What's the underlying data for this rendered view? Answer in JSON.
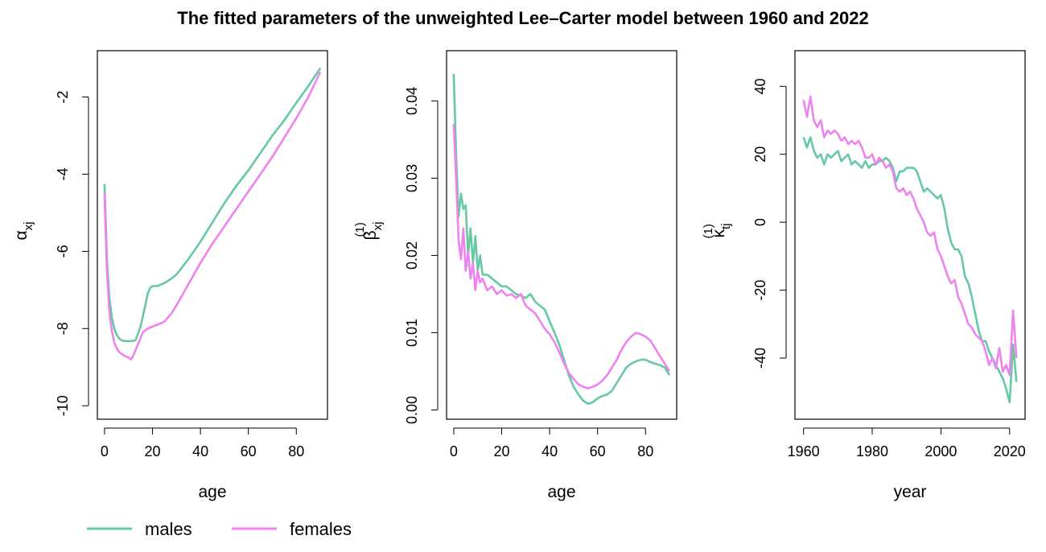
{
  "figure": {
    "title": "The fitted parameters of the unweighted Lee–Carter model between 1960 and 2022"
  },
  "legend": {
    "items": [
      {
        "label": "males",
        "color": "#66C9A3"
      },
      {
        "label": "females",
        "color": "#EE82EE"
      }
    ]
  },
  "chart_data": [
    {
      "type": "line",
      "title": "",
      "xlabel": "age",
      "ylabel_symbol": "α",
      "ylabel_subscript": "xj",
      "ylabel_superscript": "",
      "xlim": [
        -3,
        93
      ],
      "ylim": [
        -10.35,
        -0.8
      ],
      "x_ticks": [
        0,
        20,
        40,
        60,
        80
      ],
      "y_ticks": [
        -10,
        -8,
        -6,
        -4,
        -2
      ],
      "grid": false,
      "series": [
        {
          "name": "males",
          "color": "#66C9A3",
          "x": [
            0,
            1,
            2,
            3,
            4,
            5,
            6,
            7,
            8,
            10,
            12,
            13,
            15,
            17,
            18,
            19,
            20,
            22,
            25,
            28,
            30,
            35,
            40,
            45,
            50,
            55,
            60,
            65,
            70,
            75,
            80,
            85,
            90
          ],
          "y": [
            -4.25,
            -6.2,
            -7.2,
            -7.7,
            -8.0,
            -8.15,
            -8.25,
            -8.3,
            -8.32,
            -8.33,
            -8.32,
            -8.3,
            -7.95,
            -7.4,
            -7.1,
            -6.95,
            -6.9,
            -6.9,
            -6.82,
            -6.7,
            -6.6,
            -6.2,
            -5.75,
            -5.25,
            -4.75,
            -4.3,
            -3.9,
            -3.45,
            -3.0,
            -2.6,
            -2.15,
            -1.72,
            -1.25
          ]
        },
        {
          "name": "females",
          "color": "#EE82EE",
          "x": [
            0,
            1,
            2,
            3,
            4,
            5,
            6,
            7,
            8,
            10,
            11,
            12,
            14,
            16,
            18,
            20,
            22,
            25,
            28,
            30,
            35,
            40,
            45,
            50,
            55,
            60,
            65,
            70,
            75,
            80,
            85,
            90
          ],
          "y": [
            -4.5,
            -6.5,
            -7.55,
            -8.05,
            -8.35,
            -8.5,
            -8.6,
            -8.65,
            -8.7,
            -8.75,
            -8.8,
            -8.7,
            -8.4,
            -8.1,
            -8.0,
            -7.95,
            -7.9,
            -7.82,
            -7.6,
            -7.4,
            -6.85,
            -6.3,
            -5.8,
            -5.35,
            -4.9,
            -4.45,
            -4.0,
            -3.55,
            -3.05,
            -2.55,
            -2.0,
            -1.35
          ]
        }
      ]
    },
    {
      "type": "line",
      "title": "",
      "xlabel": "age",
      "ylabel_symbol": "β",
      "ylabel_subscript": "xj",
      "ylabel_superscript": "(1)",
      "xlim": [
        -3,
        93
      ],
      "ylim": [
        -0.0012,
        0.0465
      ],
      "x_ticks": [
        0,
        20,
        40,
        60,
        80
      ],
      "y_ticks": [
        0.0,
        0.01,
        0.02,
        0.03,
        0.04
      ],
      "y_tick_labels": [
        "0.00",
        "0.01",
        "0.02",
        "0.03",
        "0.04"
      ],
      "grid": false,
      "series": [
        {
          "name": "males",
          "color": "#66C9A3",
          "x": [
            0,
            1,
            2,
            3,
            4,
            5,
            6,
            7,
            8,
            9,
            10,
            11,
            12,
            14,
            16,
            18,
            20,
            22,
            24,
            26,
            28,
            30,
            32,
            34,
            36,
            38,
            40,
            42,
            44,
            46,
            48,
            50,
            52,
            54,
            56,
            58,
            60,
            62,
            64,
            66,
            68,
            70,
            72,
            74,
            76,
            78,
            80,
            82,
            84,
            86,
            88,
            90
          ],
          "y": [
            0.0435,
            0.033,
            0.025,
            0.028,
            0.026,
            0.0265,
            0.02,
            0.0235,
            0.019,
            0.0225,
            0.018,
            0.02,
            0.0175,
            0.0175,
            0.017,
            0.0165,
            0.016,
            0.016,
            0.0155,
            0.015,
            0.0148,
            0.0145,
            0.015,
            0.014,
            0.0135,
            0.013,
            0.0115,
            0.01,
            0.0085,
            0.0065,
            0.0045,
            0.003,
            0.002,
            0.0012,
            0.0008,
            0.001,
            0.0015,
            0.0018,
            0.002,
            0.0025,
            0.0035,
            0.0045,
            0.0055,
            0.006,
            0.0063,
            0.0065,
            0.0065,
            0.0062,
            0.006,
            0.0058,
            0.0055,
            0.0045
          ]
        },
        {
          "name": "females",
          "color": "#EE82EE",
          "x": [
            0,
            1,
            2,
            3,
            4,
            5,
            6,
            7,
            8,
            9,
            10,
            11,
            12,
            14,
            16,
            18,
            20,
            22,
            24,
            26,
            28,
            30,
            32,
            34,
            36,
            38,
            40,
            42,
            44,
            46,
            48,
            50,
            52,
            54,
            56,
            58,
            60,
            62,
            64,
            66,
            68,
            70,
            72,
            74,
            76,
            78,
            80,
            82,
            84,
            86,
            88,
            90
          ],
          "y": [
            0.037,
            0.03,
            0.022,
            0.0195,
            0.0235,
            0.018,
            0.0205,
            0.017,
            0.019,
            0.0155,
            0.018,
            0.0165,
            0.017,
            0.0155,
            0.016,
            0.015,
            0.0155,
            0.0148,
            0.015,
            0.0145,
            0.015,
            0.0135,
            0.013,
            0.0125,
            0.0115,
            0.0105,
            0.0098,
            0.0088,
            0.0075,
            0.006,
            0.0048,
            0.004,
            0.0033,
            0.003,
            0.0028,
            0.003,
            0.0033,
            0.0038,
            0.0045,
            0.0055,
            0.0065,
            0.0078,
            0.0088,
            0.0095,
            0.01,
            0.0098,
            0.0095,
            0.009,
            0.008,
            0.007,
            0.006,
            0.005
          ]
        }
      ]
    },
    {
      "type": "line",
      "title": "",
      "xlabel": "year",
      "ylabel_symbol": "κ",
      "ylabel_subscript": "tj",
      "ylabel_superscript": "(1)",
      "xlim": [
        1957.5,
        2024.5
      ],
      "ylim": [
        -58,
        50.5
      ],
      "x_ticks": [
        1960,
        1980,
        2000,
        2020
      ],
      "y_ticks": [
        -40,
        -20,
        0,
        20,
        40
      ],
      "grid": false,
      "series": [
        {
          "name": "males",
          "color": "#66C9A3",
          "x": [
            1960,
            1961,
            1962,
            1963,
            1964,
            1965,
            1966,
            1967,
            1968,
            1969,
            1970,
            1971,
            1972,
            1973,
            1974,
            1975,
            1976,
            1977,
            1978,
            1979,
            1980,
            1981,
            1982,
            1983,
            1984,
            1985,
            1986,
            1987,
            1988,
            1989,
            1990,
            1991,
            1992,
            1993,
            1994,
            1995,
            1996,
            1997,
            1998,
            1999,
            2000,
            2001,
            2002,
            2003,
            2004,
            2005,
            2006,
            2007,
            2008,
            2009,
            2010,
            2011,
            2012,
            2013,
            2014,
            2015,
            2016,
            2017,
            2018,
            2019,
            2020,
            2021,
            2022
          ],
          "y": [
            25,
            22,
            25,
            21,
            19,
            20,
            17,
            20,
            19,
            20,
            21,
            18,
            19,
            20,
            17,
            18,
            17,
            16,
            18,
            16,
            17,
            17,
            18,
            18,
            19,
            18,
            16,
            12,
            15,
            15,
            16,
            16,
            16,
            15,
            12,
            9,
            10,
            9,
            8,
            7,
            8,
            4,
            -2,
            -6,
            -8,
            -8,
            -10,
            -16,
            -18,
            -22,
            -27,
            -32,
            -35,
            -35,
            -38,
            -40,
            -42,
            -44,
            -46,
            -49,
            -53,
            -36,
            -47
          ]
        },
        {
          "name": "females",
          "color": "#EE82EE",
          "x": [
            1960,
            1961,
            1962,
            1963,
            1964,
            1965,
            1966,
            1967,
            1968,
            1969,
            1970,
            1971,
            1972,
            1973,
            1974,
            1975,
            1976,
            1977,
            1978,
            1979,
            1980,
            1981,
            1982,
            1983,
            1984,
            1985,
            1986,
            1987,
            1988,
            1989,
            1990,
            1991,
            1992,
            1993,
            1994,
            1995,
            1996,
            1997,
            1998,
            1999,
            2000,
            2001,
            2002,
            2003,
            2004,
            2005,
            2006,
            2007,
            2008,
            2009,
            2010,
            2011,
            2012,
            2013,
            2014,
            2015,
            2016,
            2017,
            2018,
            2019,
            2020,
            2021,
            2022
          ],
          "y": [
            36,
            31,
            37,
            30,
            28,
            30,
            25,
            27,
            26,
            27,
            26,
            24,
            25,
            23,
            24,
            23,
            24,
            22,
            19,
            19,
            20,
            17,
            19,
            18,
            16,
            17,
            15,
            10,
            9,
            10,
            8,
            9,
            7,
            4,
            2,
            0,
            -3,
            -4,
            -3,
            -8,
            -10,
            -13,
            -16,
            -18,
            -17,
            -22,
            -24,
            -27,
            -30,
            -31,
            -33,
            -34,
            -35,
            -38,
            -42,
            -40,
            -43,
            -37,
            -44,
            -42,
            -45,
            -26,
            -40
          ]
        }
      ]
    }
  ]
}
